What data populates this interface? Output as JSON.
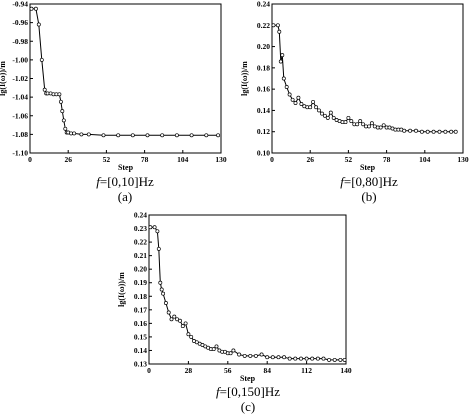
{
  "chart_data": [
    {
      "type": "line",
      "panel_label": "(a)",
      "caption_prefix": "f",
      "caption_rest": "=[0,10]Hz",
      "xlabel": "Step",
      "ylabel": "lg(I(ω))/m",
      "xlim": [
        0,
        130
      ],
      "ylim": [
        -1.1,
        -0.94
      ],
      "xticks": [
        0,
        26,
        52,
        78,
        104,
        130
      ],
      "yticks": [
        -0.94,
        -0.96,
        -0.98,
        -1.0,
        -1.02,
        -1.04,
        -1.06,
        -1.08,
        -1.1
      ],
      "ytick_labels": [
        "-0.94",
        "-0.96",
        "-0.98",
        "-1.00",
        "-1.02",
        "-1.04",
        "-1.06",
        "-1.08",
        "-1.10"
      ],
      "marker": "circle",
      "series": [
        {
          "x": [
            1,
            4,
            6,
            8,
            10,
            11,
            12,
            14,
            16,
            18,
            20,
            21,
            22,
            23,
            24,
            25,
            26,
            28,
            30,
            35,
            40,
            50,
            60,
            70,
            80,
            90,
            100,
            110,
            120,
            128
          ],
          "y": [
            -0.945,
            -0.945,
            -0.962,
            -1.0,
            -1.032,
            -1.036,
            -1.036,
            -1.036,
            -1.037,
            -1.037,
            -1.037,
            -1.045,
            -1.055,
            -1.065,
            -1.074,
            -1.078,
            -1.078,
            -1.079,
            -1.079,
            -1.08,
            -1.08,
            -1.081,
            -1.081,
            -1.081,
            -1.081,
            -1.081,
            -1.081,
            -1.081,
            -1.081,
            -1.081
          ]
        }
      ]
    },
    {
      "type": "line",
      "panel_label": "(b)",
      "caption_prefix": "f",
      "caption_rest": "=[0,80]Hz",
      "xlabel": "Step",
      "ylabel": "lg(I(ω))/m",
      "xlim": [
        0,
        130
      ],
      "ylim": [
        0.1,
        0.24
      ],
      "xticks": [
        0,
        26,
        52,
        78,
        104,
        130
      ],
      "yticks": [
        0.1,
        0.12,
        0.14,
        0.16,
        0.18,
        0.2,
        0.22,
        0.24
      ],
      "ytick_labels": [
        "0.10",
        "0.12",
        "0.14",
        "0.16",
        "0.18",
        "0.20",
        "0.22",
        "0.24"
      ],
      "marker": "circle",
      "series": [
        {
          "x": [
            1,
            4,
            5,
            6,
            7,
            8,
            10,
            12,
            14,
            16,
            18,
            20,
            22,
            24,
            26,
            28,
            30,
            32,
            34,
            36,
            38,
            40,
            42,
            44,
            46,
            48,
            50,
            52,
            54,
            56,
            58,
            60,
            62,
            64,
            66,
            68,
            70,
            72,
            74,
            76,
            78,
            80,
            82,
            84,
            86,
            88,
            90,
            94,
            98,
            102,
            106,
            110,
            114,
            118,
            122,
            125
          ],
          "y": [
            0.22,
            0.22,
            0.214,
            0.186,
            0.192,
            0.17,
            0.162,
            0.155,
            0.15,
            0.147,
            0.152,
            0.146,
            0.144,
            0.143,
            0.143,
            0.148,
            0.143,
            0.14,
            0.137,
            0.135,
            0.133,
            0.138,
            0.133,
            0.131,
            0.13,
            0.129,
            0.129,
            0.133,
            0.13,
            0.127,
            0.127,
            0.13,
            0.127,
            0.125,
            0.125,
            0.128,
            0.125,
            0.124,
            0.124,
            0.126,
            0.124,
            0.124,
            0.123,
            0.122,
            0.122,
            0.122,
            0.121,
            0.121,
            0.121,
            0.12,
            0.12,
            0.12,
            0.12,
            0.12,
            0.12,
            0.12
          ]
        }
      ]
    },
    {
      "type": "line",
      "panel_label": "(c)",
      "caption_prefix": "f",
      "caption_rest": "=[0,150]Hz",
      "xlabel": "Step",
      "ylabel": "lg(I(ω))/m",
      "xlim": [
        0,
        140
      ],
      "ylim": [
        0.13,
        0.24
      ],
      "xticks": [
        0,
        28,
        56,
        84,
        112,
        140
      ],
      "yticks": [
        0.13,
        0.14,
        0.15,
        0.16,
        0.17,
        0.18,
        0.19,
        0.2,
        0.21,
        0.22,
        0.23,
        0.24
      ],
      "ytick_labels": [
        "0.13",
        "0.14",
        "0.15",
        "0.16",
        "0.17",
        "0.18",
        "0.19",
        "0.20",
        "0.21",
        "0.22",
        "0.23",
        "0.24"
      ],
      "marker": "circle",
      "series": [
        {
          "x": [
            1,
            4,
            6,
            7,
            8,
            9,
            10,
            12,
            14,
            16,
            18,
            20,
            22,
            24,
            26,
            28,
            30,
            32,
            34,
            36,
            38,
            40,
            42,
            44,
            46,
            48,
            50,
            52,
            54,
            56,
            58,
            60,
            64,
            68,
            72,
            76,
            80,
            84,
            88,
            92,
            96,
            100,
            104,
            108,
            112,
            116,
            120,
            124,
            128,
            132,
            136,
            139
          ],
          "y": [
            0.231,
            0.231,
            0.228,
            0.215,
            0.19,
            0.185,
            0.182,
            0.175,
            0.168,
            0.163,
            0.165,
            0.163,
            0.162,
            0.158,
            0.16,
            0.152,
            0.15,
            0.147,
            0.146,
            0.145,
            0.144,
            0.143,
            0.142,
            0.141,
            0.141,
            0.143,
            0.14,
            0.139,
            0.139,
            0.138,
            0.138,
            0.14,
            0.137,
            0.136,
            0.136,
            0.136,
            0.137,
            0.135,
            0.135,
            0.135,
            0.135,
            0.134,
            0.134,
            0.134,
            0.134,
            0.134,
            0.134,
            0.134,
            0.133,
            0.133,
            0.133,
            0.133
          ]
        }
      ]
    }
  ]
}
